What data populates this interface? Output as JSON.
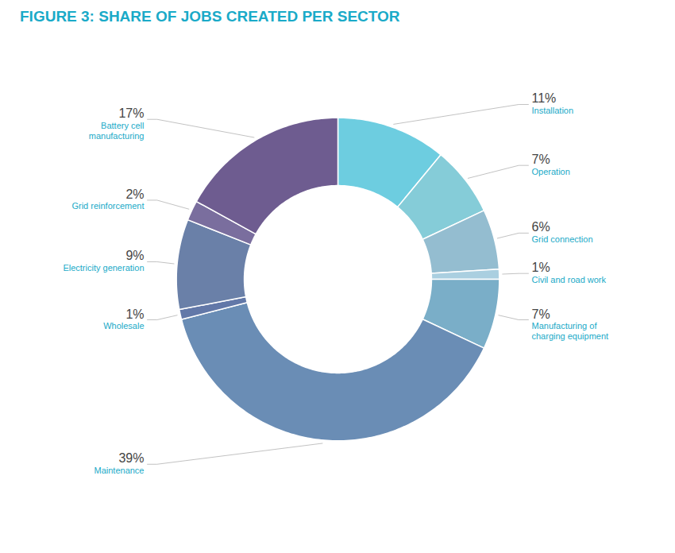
{
  "chart_data": {
    "type": "donut",
    "title": "FIGURE 3: SHARE OF JOBS CREATED PER SECTOR",
    "categories": [
      "Installation",
      "Operation",
      "Grid connection",
      "Civil and road work",
      "Manufacturing of\ncharging equipment",
      "Maintenance",
      "Wholesale",
      "Electricity generation",
      "Grid reinforcement",
      "Battery cell\nmanufacturing"
    ],
    "values": [
      11,
      7,
      6,
      1,
      7,
      39,
      1,
      9,
      2,
      17
    ],
    "value_labels": [
      "11%",
      "7%",
      "6%",
      "1%",
      "7%",
      "39%",
      "1%",
      "9%",
      "2%",
      "17%"
    ],
    "colors": [
      "#6dcde0",
      "#85ccd8",
      "#94bdd0",
      "#aacfe0",
      "#7aaec8",
      "#6a8db5",
      "#6278a8",
      "#6a80a8",
      "#7a6e9e",
      "#6e5c90"
    ],
    "data_labels": true
  }
}
